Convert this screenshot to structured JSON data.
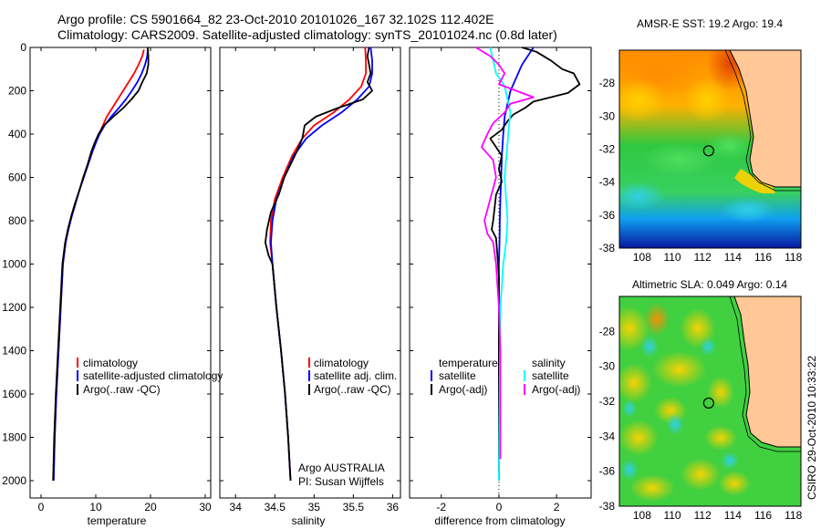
{
  "header": {
    "line1": "Argo profile: CS 5901664_82 23-Oct-2010 20101026_167 32.102S 112.402E",
    "line2": "Climatology: CARS2009. Satellite-adjusted climatology: synTS_20101024.nc (0.8d later)"
  },
  "side_label": "CSIRO 29-Oct-2010 10:33:22",
  "colors": {
    "climatology": "#ff0000",
    "satellite": "#0000ff",
    "argo": "#000000",
    "sat_salinity": "#00ffff",
    "argo_salinity": "#ff00ff",
    "land": "#ffc896"
  },
  "chart_data": [
    {
      "type": "line",
      "id": "temperature",
      "xlabel": "temperature",
      "ylabel": "",
      "xlim": [
        -2,
        31
      ],
      "ylim": [
        2080,
        0
      ],
      "xticks": [
        "0",
        "10",
        "20",
        "30"
      ],
      "yticks": [
        "0",
        "200",
        "400",
        "600",
        "800",
        "1000",
        "1200",
        "1400",
        "1600",
        "1800",
        "2000"
      ],
      "legend": [
        "climatology",
        "satellite-adjusted climatology",
        "Argo(..raw -QC)"
      ],
      "series": [
        {
          "name": "climatology",
          "color": "#ff0000",
          "points": [
            [
              18.8,
              10
            ],
            [
              18.5,
              40
            ],
            [
              17.8,
              80
            ],
            [
              17.0,
              120
            ],
            [
              16.0,
              160
            ],
            [
              15.0,
              200
            ],
            [
              14.0,
              240
            ],
            [
              13.0,
              280
            ],
            [
              12.0,
              320
            ],
            [
              11.3,
              360
            ],
            [
              10.6,
              400
            ],
            [
              10.0,
              440
            ],
            [
              9.4,
              480
            ],
            [
              8.6,
              540
            ],
            [
              7.8,
              600
            ],
            [
              7.0,
              660
            ],
            [
              6.3,
              720
            ],
            [
              5.6,
              780
            ],
            [
              5.0,
              840
            ],
            [
              4.5,
              900
            ],
            [
              4.0,
              1000
            ],
            [
              3.6,
              1200
            ],
            [
              3.2,
              1400
            ],
            [
              2.8,
              1600
            ],
            [
              2.5,
              1800
            ],
            [
              2.3,
              2000
            ]
          ]
        },
        {
          "name": "satellite-adjusted climatology",
          "color": "#0000ff",
          "points": [
            [
              19.5,
              0
            ],
            [
              19.4,
              40
            ],
            [
              19.0,
              80
            ],
            [
              18.4,
              120
            ],
            [
              17.6,
              160
            ],
            [
              16.6,
              200
            ],
            [
              15.5,
              240
            ],
            [
              14.2,
              280
            ],
            [
              12.8,
              320
            ],
            [
              11.6,
              360
            ],
            [
              10.7,
              400
            ],
            [
              10.0,
              440
            ],
            [
              9.4,
              480
            ],
            [
              8.6,
              540
            ],
            [
              7.8,
              600
            ],
            [
              7.0,
              660
            ],
            [
              6.3,
              720
            ],
            [
              5.6,
              780
            ],
            [
              5.0,
              840
            ],
            [
              4.5,
              900
            ],
            [
              4.0,
              1000
            ],
            [
              3.6,
              1200
            ],
            [
              3.2,
              1400
            ],
            [
              2.8,
              1600
            ],
            [
              2.5,
              1800
            ],
            [
              2.3,
              2000
            ]
          ]
        },
        {
          "name": "Argo(..raw -QC)",
          "color": "#000000",
          "points": [
            [
              19.5,
              0
            ],
            [
              19.6,
              40
            ],
            [
              19.6,
              80
            ],
            [
              19.3,
              120
            ],
            [
              18.5,
              160
            ],
            [
              17.8,
              200
            ],
            [
              16.5,
              240
            ],
            [
              15.0,
              280
            ],
            [
              13.2,
              320
            ],
            [
              11.5,
              360
            ],
            [
              10.5,
              400
            ],
            [
              9.8,
              440
            ],
            [
              9.2,
              480
            ],
            [
              8.5,
              540
            ],
            [
              7.7,
              600
            ],
            [
              7.0,
              660
            ],
            [
              6.2,
              720
            ],
            [
              5.5,
              780
            ],
            [
              4.9,
              840
            ],
            [
              4.4,
              900
            ],
            [
              3.9,
              1000
            ],
            [
              3.5,
              1200
            ],
            [
              3.1,
              1400
            ],
            [
              2.7,
              1600
            ],
            [
              2.4,
              1800
            ],
            [
              2.2,
              2000
            ]
          ]
        }
      ]
    },
    {
      "type": "line",
      "id": "salinity",
      "xlabel": "salinity",
      "ylabel": "",
      "xlim": [
        33.8,
        36.1
      ],
      "ylim": [
        2080,
        0
      ],
      "xticks": [
        "34",
        "34.5",
        "35",
        "35.5",
        "36"
      ],
      "legend": [
        "climatology",
        "satellite adj. clim.",
        "Argo(..raw -QC)"
      ],
      "annotation": [
        "Argo AUSTRALIA",
        "PI: Susan Wijffels"
      ],
      "series": [
        {
          "name": "climatology",
          "color": "#ff0000",
          "points": [
            [
              35.65,
              0
            ],
            [
              35.66,
              60
            ],
            [
              35.66,
              120
            ],
            [
              35.6,
              180
            ],
            [
              35.45,
              240
            ],
            [
              35.25,
              300
            ],
            [
              35.0,
              360
            ],
            [
              34.85,
              420
            ],
            [
              34.72,
              500
            ],
            [
              34.6,
              600
            ],
            [
              34.5,
              700
            ],
            [
              34.45,
              800
            ],
            [
              34.44,
              900
            ],
            [
              34.47,
              1000
            ],
            [
              34.52,
              1200
            ],
            [
              34.58,
              1400
            ],
            [
              34.63,
              1600
            ],
            [
              34.67,
              1800
            ],
            [
              34.7,
              2000
            ]
          ]
        },
        {
          "name": "satellite adj. clim.",
          "color": "#0000ff",
          "points": [
            [
              35.72,
              0
            ],
            [
              35.74,
              60
            ],
            [
              35.74,
              120
            ],
            [
              35.7,
              180
            ],
            [
              35.55,
              240
            ],
            [
              35.35,
              300
            ],
            [
              35.1,
              360
            ],
            [
              34.9,
              420
            ],
            [
              34.74,
              500
            ],
            [
              34.62,
              600
            ],
            [
              34.52,
              700
            ],
            [
              34.47,
              800
            ],
            [
              34.45,
              900
            ],
            [
              34.47,
              1000
            ],
            [
              34.52,
              1200
            ],
            [
              34.58,
              1400
            ],
            [
              34.63,
              1600
            ],
            [
              34.67,
              1800
            ],
            [
              34.7,
              2000
            ]
          ]
        },
        {
          "name": "Argo(..raw -QC)",
          "color": "#000000",
          "points": [
            [
              35.7,
              0
            ],
            [
              35.68,
              40
            ],
            [
              35.7,
              80
            ],
            [
              35.72,
              120
            ],
            [
              35.68,
              160
            ],
            [
              35.74,
              200
            ],
            [
              35.62,
              240
            ],
            [
              35.3,
              280
            ],
            [
              35.02,
              320
            ],
            [
              34.88,
              360
            ],
            [
              34.85,
              420
            ],
            [
              34.78,
              480
            ],
            [
              34.7,
              540
            ],
            [
              34.62,
              600
            ],
            [
              34.55,
              680
            ],
            [
              34.45,
              760
            ],
            [
              34.4,
              840
            ],
            [
              34.38,
              900
            ],
            [
              34.42,
              960
            ],
            [
              34.47,
              1000
            ],
            [
              34.52,
              1200
            ],
            [
              34.58,
              1400
            ],
            [
              34.63,
              1600
            ],
            [
              34.67,
              1800
            ],
            [
              34.7,
              2000
            ]
          ]
        }
      ]
    },
    {
      "type": "line",
      "id": "difference",
      "xlabel": "difference from climatology",
      "ylabel": "",
      "xlim": [
        -3.1,
        3.2
      ],
      "ylim": [
        2080,
        0
      ],
      "xticks": [
        "-2",
        "0",
        "2"
      ],
      "legend_titles": [
        "temperature",
        "salinity"
      ],
      "legend": [
        "satellite",
        "Argo(-adj)",
        "satellite",
        "Argo(-adj)"
      ],
      "series": [
        {
          "name": "satellite",
          "quantity": "temperature",
          "color": "#0000ff",
          "points": [
            [
              1.2,
              0
            ],
            [
              1.0,
              40
            ],
            [
              0.8,
              80
            ],
            [
              0.6,
              140
            ],
            [
              0.4,
              200
            ],
            [
              0.3,
              260
            ],
            [
              0.2,
              320
            ],
            [
              0.15,
              400
            ],
            [
              0.1,
              500
            ],
            [
              0.08,
              600
            ],
            [
              0.05,
              700
            ],
            [
              0.03,
              800
            ],
            [
              0.02,
              900
            ],
            [
              0.0,
              1000
            ],
            [
              0.0,
              2000
            ]
          ]
        },
        {
          "name": "Argo(-adj)",
          "quantity": "temperature",
          "color": "#000000",
          "points": [
            [
              0.8,
              0
            ],
            [
              1.3,
              20
            ],
            [
              1.8,
              60
            ],
            [
              2.2,
              100
            ],
            [
              2.6,
              120
            ],
            [
              2.8,
              170
            ],
            [
              2.4,
              210
            ],
            [
              1.8,
              230
            ],
            [
              1.2,
              250
            ],
            [
              0.9,
              280
            ],
            [
              0.5,
              310
            ],
            [
              0.3,
              340
            ],
            [
              0.1,
              380
            ],
            [
              -0.3,
              420
            ],
            [
              -0.1,
              460
            ],
            [
              0.1,
              500
            ],
            [
              0.0,
              560
            ],
            [
              0.1,
              620
            ],
            [
              -0.1,
              680
            ],
            [
              -0.15,
              740
            ],
            [
              -0.2,
              800
            ],
            [
              -0.25,
              840
            ],
            [
              -0.1,
              880
            ],
            [
              -0.05,
              960
            ],
            [
              0.0,
              1060
            ],
            [
              0.0,
              2000
            ]
          ]
        },
        {
          "name": "satellite",
          "quantity": "salinity",
          "color": "#00ffff",
          "points": [
            [
              -0.3,
              0
            ],
            [
              -0.2,
              60
            ],
            [
              -0.1,
              120
            ],
            [
              0.2,
              180
            ],
            [
              0.3,
              240
            ],
            [
              0.4,
              300
            ],
            [
              0.35,
              360
            ],
            [
              0.3,
              440
            ],
            [
              0.25,
              520
            ],
            [
              0.2,
              600
            ],
            [
              0.25,
              700
            ],
            [
              0.3,
              800
            ],
            [
              0.25,
              900
            ],
            [
              0.15,
              1000
            ],
            [
              0.05,
              1200
            ],
            [
              0.0,
              2000
            ]
          ]
        },
        {
          "name": "Argo(-adj)",
          "quantity": "salinity",
          "color": "#ff00ff",
          "points": [
            [
              -0.8,
              0
            ],
            [
              -0.3,
              40
            ],
            [
              0.0,
              80
            ],
            [
              0.2,
              120
            ],
            [
              0.0,
              170
            ],
            [
              0.6,
              200
            ],
            [
              1.2,
              230
            ],
            [
              0.4,
              260
            ],
            [
              0.2,
              300
            ],
            [
              -0.2,
              350
            ],
            [
              -0.4,
              400
            ],
            [
              -0.6,
              460
            ],
            [
              -0.2,
              520
            ],
            [
              -0.1,
              600
            ],
            [
              -0.3,
              700
            ],
            [
              -0.5,
              800
            ],
            [
              -0.4,
              860
            ],
            [
              -0.2,
              900
            ],
            [
              -0.1,
              1000
            ],
            [
              0.0,
              1200
            ],
            [
              0.05,
              1400
            ],
            [
              0.05,
              1600
            ],
            [
              0.05,
              1800
            ],
            [
              0.05,
              1900
            ]
          ]
        }
      ]
    },
    {
      "type": "heatmap",
      "id": "sst_map",
      "title": "AMSR-E SST: 19.2  Argo: 19.4",
      "xticks": [
        "108",
        "110",
        "112",
        "114",
        "116",
        "118"
      ],
      "yticks": [
        "-28",
        "-30",
        "-32",
        "-34",
        "-36",
        "-38"
      ],
      "xlim": [
        106.5,
        118.5
      ],
      "ylim": [
        -38,
        -26
      ],
      "marker": {
        "lon": 112.4,
        "lat": -32.1
      }
    },
    {
      "type": "heatmap",
      "id": "sla_map",
      "title": "Altimetric SLA: 0.049  Argo: 0.14",
      "xticks": [
        "108",
        "110",
        "112",
        "114",
        "116",
        "118"
      ],
      "yticks": [
        "-28",
        "-30",
        "-32",
        "-34",
        "-36",
        "-38"
      ],
      "xlim": [
        106.5,
        118.5
      ],
      "ylim": [
        -38,
        -26
      ],
      "marker": {
        "lon": 112.4,
        "lat": -32.1
      }
    }
  ]
}
